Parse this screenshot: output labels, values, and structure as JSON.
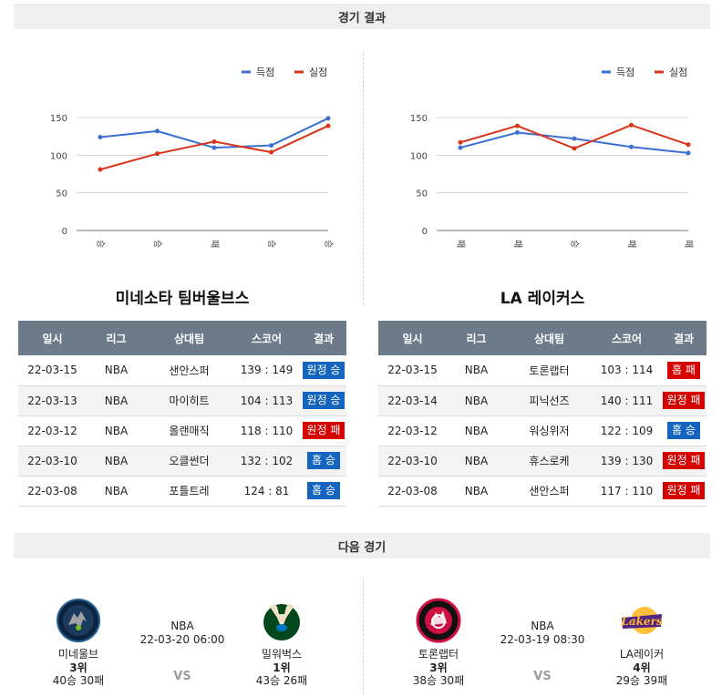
{
  "sections": {
    "results_title": "경기 결과",
    "next_title": "다음 경기"
  },
  "legend": {
    "scored": "득점",
    "conceded": "실점"
  },
  "colors": {
    "scored": "#3b6fd0",
    "conceded": "#d9341a",
    "win_badge": "#1565c0",
    "loss_badge": "#d50000",
    "header_bg": "#6c7a89"
  },
  "chart_data": [
    {
      "type": "line",
      "categories": [
        "승",
        "승",
        "패",
        "승",
        "승"
      ],
      "ylim": [
        0,
        150
      ],
      "yticks": [
        0,
        50,
        100,
        150
      ],
      "series": [
        {
          "name": "득점",
          "values": [
            124,
            132,
            110,
            113,
            149
          ]
        },
        {
          "name": "실점",
          "values": [
            81,
            102,
            118,
            104,
            139
          ]
        }
      ]
    },
    {
      "type": "line",
      "categories": [
        "패",
        "패",
        "승",
        "패",
        "패"
      ],
      "ylim": [
        0,
        150
      ],
      "yticks": [
        0,
        50,
        100,
        150
      ],
      "series": [
        {
          "name": "득점",
          "values": [
            110,
            130,
            122,
            111,
            103
          ]
        },
        {
          "name": "실점",
          "values": [
            117,
            139,
            109,
            140,
            114
          ]
        }
      ]
    }
  ],
  "table_headers": [
    "일시",
    "리그",
    "상대팀",
    "스코어",
    "결과"
  ],
  "teams": [
    {
      "title": "미네소타 팀버울브스",
      "games": [
        {
          "date": "22-03-15",
          "league": "NBA",
          "opponent": "샌안스퍼",
          "score": "139 : 149",
          "result": "원정 승",
          "win": true
        },
        {
          "date": "22-03-13",
          "league": "NBA",
          "opponent": "마이히트",
          "score": "104 : 113",
          "result": "원정 승",
          "win": true
        },
        {
          "date": "22-03-12",
          "league": "NBA",
          "opponent": "올랜매직",
          "score": "118 : 110",
          "result": "원정 패",
          "win": false
        },
        {
          "date": "22-03-10",
          "league": "NBA",
          "opponent": "오클썬더",
          "score": "132 : 102",
          "result": "홈 승",
          "win": true
        },
        {
          "date": "22-03-08",
          "league": "NBA",
          "opponent": "포틀트레",
          "score": "124 : 81",
          "result": "홈 승",
          "win": true
        }
      ]
    },
    {
      "title": "LA 레이커스",
      "games": [
        {
          "date": "22-03-15",
          "league": "NBA",
          "opponent": "토론랩터",
          "score": "103 : 114",
          "result": "홈 패",
          "win": false
        },
        {
          "date": "22-03-14",
          "league": "NBA",
          "opponent": "피닉선즈",
          "score": "140 : 111",
          "result": "원정 패",
          "win": false
        },
        {
          "date": "22-03-12",
          "league": "NBA",
          "opponent": "워싱위저",
          "score": "122 : 109",
          "result": "홈 승",
          "win": true
        },
        {
          "date": "22-03-10",
          "league": "NBA",
          "opponent": "휴스로케",
          "score": "139 : 130",
          "result": "원정 패",
          "win": false
        },
        {
          "date": "22-03-08",
          "league": "NBA",
          "opponent": "샌안스퍼",
          "score": "117 : 110",
          "result": "원정 패",
          "win": false
        }
      ]
    }
  ],
  "next_games": [
    {
      "league": "NBA",
      "datetime": "22-03-20 06:00",
      "vs": "VS",
      "home": {
        "name": "미네울브",
        "rank": "3위",
        "record": "40승 30패",
        "logo_icon": "timberwolves-logo"
      },
      "away": {
        "name": "밀워벅스",
        "rank": "1위",
        "record": "43승 26패",
        "logo_icon": "bucks-logo"
      }
    },
    {
      "league": "NBA",
      "datetime": "22-03-19 08:30",
      "vs": "VS",
      "home": {
        "name": "토론랩터",
        "rank": "3위",
        "record": "38승 30패",
        "logo_icon": "raptors-logo",
        "logo_text": "TORONTO RAPTORS"
      },
      "away": {
        "name": "LA레이커",
        "rank": "4위",
        "record": "29승 39패",
        "logo_icon": "lakers-logo",
        "logo_text": "Lakers"
      }
    }
  ]
}
